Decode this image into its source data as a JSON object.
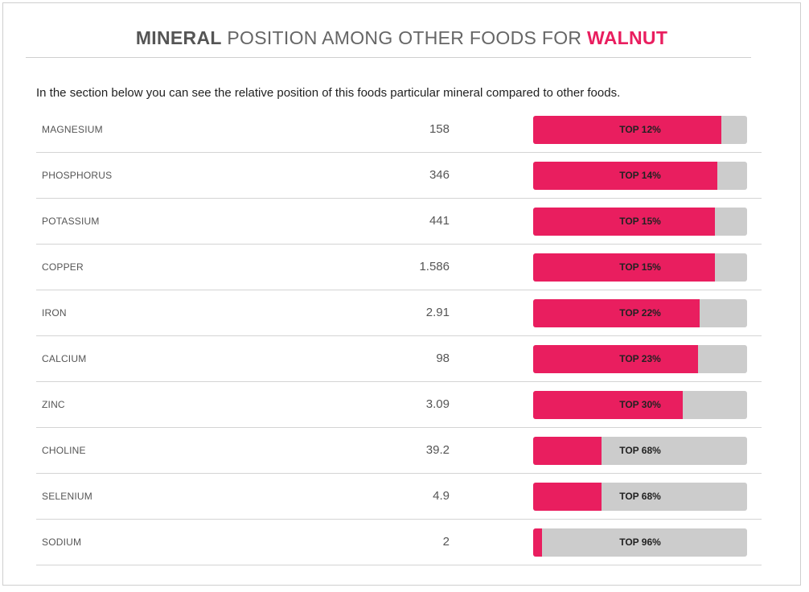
{
  "header": {
    "title_part1": "MINERAL",
    "title_part2": " POSITION AMONG OTHER FOODS FOR ",
    "title_part3": "WALNUT"
  },
  "intro": "In the section below you can see the relative position of this foods particular mineral compared to other foods.",
  "colors": {
    "accent": "#e91e5f",
    "track": "#cccccc"
  },
  "chart_data": {
    "type": "bar",
    "categories": [
      "MAGNESIUM",
      "PHOSPHORUS",
      "POTASSIUM",
      "COPPER",
      "IRON",
      "CALCIUM",
      "ZINC",
      "CHOLINE",
      "SELENIUM",
      "SODIUM"
    ],
    "amounts": [
      "158",
      "346",
      "441",
      "1.586",
      "2.91",
      "98",
      "3.09",
      "39.2",
      "4.9",
      "2"
    ],
    "rank_labels": [
      "TOP 12%",
      "TOP 14%",
      "TOP 15%",
      "TOP 15%",
      "TOP 22%",
      "TOP 23%",
      "TOP 30%",
      "TOP 68%",
      "TOP 68%",
      "TOP 96%"
    ],
    "values": [
      88,
      86,
      85,
      85,
      78,
      77,
      70,
      32,
      32,
      4
    ],
    "ylim": [
      0,
      100
    ]
  }
}
